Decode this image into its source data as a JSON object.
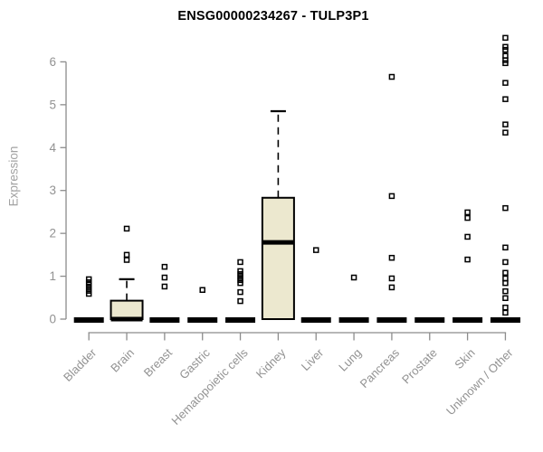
{
  "chart_data": {
    "type": "boxplot",
    "title": "ENSG00000234267 - TULP3P1",
    "xlabel": "",
    "ylabel": "Expression",
    "ylim": [
      0,
      6.8
    ],
    "yticks": [
      0,
      1,
      2,
      3,
      4,
      5,
      6
    ],
    "grid": false,
    "legend": "none",
    "colors": {
      "box_fill": "#ece8cf",
      "box_stroke": "#000000",
      "median": "#000000",
      "outlier": "#000000",
      "axis": "#8c8c8c",
      "tick_label": "#929292",
      "title": "#000000"
    },
    "categories": [
      "Bladder",
      "Brain",
      "Breast",
      "Gastric",
      "Hematopoietic cells",
      "Kidney",
      "Liver",
      "Lung",
      "Pancreas",
      "Prostate",
      "Skin",
      "Unknown / Other"
    ],
    "series": [
      {
        "name": "Bladder",
        "q1": 0,
        "median": 0,
        "q3": 0,
        "whisker_low": 0,
        "whisker_high": 0,
        "outliers": [
          0.93,
          0.86,
          0.8,
          0.73,
          0.66,
          0.59
        ]
      },
      {
        "name": "Brain",
        "q1": 0,
        "median": 0,
        "q3": 0.43,
        "whisker_low": 0,
        "whisker_high": 0.93,
        "outliers": [
          2.11,
          1.5,
          1.38
        ]
      },
      {
        "name": "Breast",
        "q1": 0,
        "median": 0,
        "q3": 0,
        "whisker_low": 0,
        "whisker_high": 0,
        "outliers": [
          1.22,
          0.97,
          0.76
        ]
      },
      {
        "name": "Gastric",
        "q1": 0,
        "median": 0,
        "q3": 0,
        "whisker_low": 0,
        "whisker_high": 0,
        "outliers": [
          0.68
        ]
      },
      {
        "name": "Hematopoietic cells",
        "q1": 0,
        "median": 0,
        "q3": 0,
        "whisker_low": 0,
        "whisker_high": 0,
        "outliers": [
          1.33,
          1.12,
          1.05,
          0.98,
          0.91,
          0.84,
          0.63,
          0.42
        ]
      },
      {
        "name": "Kidney",
        "q1": 0,
        "median": 1.79,
        "q3": 2.83,
        "whisker_low": 0,
        "whisker_high": 4.85,
        "outliers": []
      },
      {
        "name": "Liver",
        "q1": 0,
        "median": 0,
        "q3": 0,
        "whisker_low": 0,
        "whisker_high": 0,
        "outliers": [
          1.61
        ]
      },
      {
        "name": "Lung",
        "q1": 0,
        "median": 0,
        "q3": 0,
        "whisker_low": 0,
        "whisker_high": 0,
        "outliers": [
          0.97
        ]
      },
      {
        "name": "Pancreas",
        "q1": 0,
        "median": 0,
        "q3": 0,
        "whisker_low": 0,
        "whisker_high": 0,
        "outliers": [
          5.65,
          2.87,
          1.43,
          0.95,
          0.74
        ]
      },
      {
        "name": "Prostate",
        "q1": 0,
        "median": 0,
        "q3": 0,
        "whisker_low": 0,
        "whisker_high": 0,
        "outliers": []
      },
      {
        "name": "Skin",
        "q1": 0,
        "median": 0,
        "q3": 0,
        "whisker_low": 0,
        "whisker_high": 0,
        "outliers": [
          2.49,
          2.36,
          1.92,
          1.39
        ]
      },
      {
        "name": "Unknown / Other",
        "q1": 0,
        "median": 0,
        "q3": 0,
        "whisker_low": 0,
        "whisker_high": 0,
        "outliers": [
          6.56,
          6.35,
          6.28,
          6.14,
          6.04,
          5.97,
          5.51,
          5.13,
          4.54,
          4.35,
          2.59,
          1.67,
          1.33,
          1.08,
          0.95,
          0.84,
          0.65,
          0.49,
          0.27,
          0.15
        ]
      }
    ]
  }
}
